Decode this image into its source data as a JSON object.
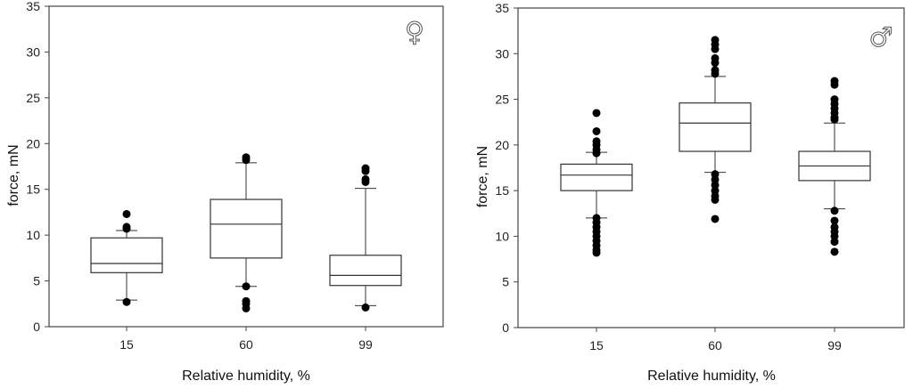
{
  "chart_data": [
    {
      "type": "box",
      "panel": "female",
      "symbol": "♀",
      "xlabel": "Relative humidity, %",
      "ylabel": "force, mN",
      "ylim": [
        0,
        35
      ],
      "yticks": [
        0,
        5,
        10,
        15,
        20,
        25,
        30,
        35
      ],
      "categories": [
        "15",
        "60",
        "99"
      ],
      "boxes": [
        {
          "q1": 5.9,
          "median": 6.9,
          "q3": 9.7,
          "whisker_low": 2.9,
          "whisker_high": 10.5,
          "outliers": [
            12.3,
            10.9,
            10.7,
            2.7
          ]
        },
        {
          "q1": 7.5,
          "median": 11.2,
          "q3": 13.9,
          "whisker_low": 4.4,
          "whisker_high": 17.9,
          "outliers": [
            18.5,
            18.2,
            4.4,
            2.8,
            2.5,
            2.0
          ]
        },
        {
          "q1": 4.5,
          "median": 5.6,
          "q3": 7.8,
          "whisker_low": 2.3,
          "whisker_high": 15.1,
          "outliers": [
            17.3,
            17.0,
            16.1,
            15.8,
            2.1
          ]
        }
      ]
    },
    {
      "type": "box",
      "panel": "male",
      "symbol": "♂",
      "xlabel": "Relative humidity, %",
      "ylabel": "force, mN",
      "ylim": [
        0,
        35
      ],
      "yticks": [
        0,
        5,
        10,
        15,
        20,
        25,
        30,
        35
      ],
      "categories": [
        "15",
        "60",
        "99"
      ],
      "boxes": [
        {
          "q1": 15.0,
          "median": 16.7,
          "q3": 17.9,
          "whisker_low": 12.0,
          "whisker_high": 19.2,
          "outliers": [
            23.5,
            21.5,
            20.4,
            20.0,
            19.5,
            19.1,
            12.0,
            11.5,
            11.0,
            10.5,
            10.0,
            9.5,
            9.0,
            8.5,
            8.2
          ]
        },
        {
          "q1": 19.3,
          "median": 22.4,
          "q3": 24.6,
          "whisker_low": 17.0,
          "whisker_high": 27.5,
          "outliers": [
            31.5,
            31.0,
            30.5,
            29.5,
            29.0,
            28.2,
            27.8,
            16.8,
            16.2,
            15.6,
            15.0,
            14.4,
            14.0,
            11.9
          ]
        },
        {
          "q1": 16.1,
          "median": 17.7,
          "q3": 19.3,
          "whisker_low": 13.0,
          "whisker_high": 22.4,
          "outliers": [
            27.0,
            26.6,
            25.0,
            24.5,
            24.0,
            23.5,
            23.0,
            22.8,
            12.8,
            11.7,
            11.0,
            10.5,
            10.0,
            9.4,
            8.3
          ]
        }
      ]
    }
  ]
}
